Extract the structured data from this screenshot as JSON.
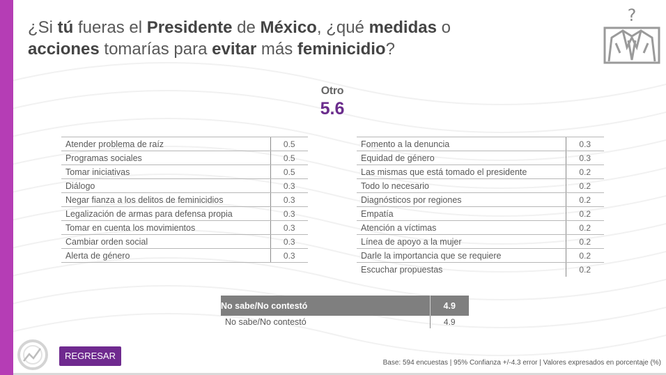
{
  "title": {
    "line1": [
      {
        "text": "¿Si ",
        "bold": false
      },
      {
        "text": "tú",
        "bold": true
      },
      {
        "text": " fueras el ",
        "bold": false
      },
      {
        "text": "Presidente",
        "bold": true
      },
      {
        "text": " de ",
        "bold": false
      },
      {
        "text": "México",
        "bold": true
      },
      {
        "text": ", ¿qué ",
        "bold": false
      },
      {
        "text": "medidas",
        "bold": true
      },
      {
        "text": " o",
        "bold": false
      }
    ],
    "line2": [
      {
        "text": "acciones",
        "bold": true
      },
      {
        "text": " tomarías para ",
        "bold": false
      },
      {
        "text": "evitar",
        "bold": true
      },
      {
        "text": " más ",
        "bold": false
      },
      {
        "text": "feminicidio",
        "bold": true
      },
      {
        "text": "?",
        "bold": false
      }
    ]
  },
  "logo": {
    "icon": "question-suit-icon",
    "glyph": "?"
  },
  "otro": {
    "label": "Otro",
    "value": "5.6"
  },
  "table_left": [
    {
      "label": "Atender problema de raíz",
      "value": "0.5"
    },
    {
      "label": "Programas sociales",
      "value": "0.5"
    },
    {
      "label": "Tomar iniciativas",
      "value": "0.5"
    },
    {
      "label": "Diálogo",
      "value": "0.3"
    },
    {
      "label": "Negar fianza a los delitos de feminicidios",
      "value": "0.3"
    },
    {
      "label": "Legalización de armas para defensa propia",
      "value": "0.3"
    },
    {
      "label": "Tomar en cuenta los movimientos",
      "value": "0.3"
    },
    {
      "label": "Cambiar orden social",
      "value": "0.3"
    },
    {
      "label": "Alerta de género",
      "value": "0.3"
    }
  ],
  "table_right": [
    {
      "label": "Fomento a la denuncia",
      "value": "0.3"
    },
    {
      "label": "Equidad de género",
      "value": "0.3"
    },
    {
      "label": "Las mismas que está tomado el presidente",
      "value": "0.2"
    },
    {
      "label": "Todo lo necesario",
      "value": "0.2"
    },
    {
      "label": "Diagnósticos por regiones",
      "value": "0.2"
    },
    {
      "label": "Empatía",
      "value": "0.2"
    },
    {
      "label": "Atención a víctimas",
      "value": "0.2"
    },
    {
      "label": "Línea de apoyo a la mujer",
      "value": "0.2"
    },
    {
      "label": "Darle la importancia que se requiere",
      "value": "0.2"
    },
    {
      "label": "Escuchar propuestas",
      "value": "0.2"
    }
  ],
  "no_sabe": {
    "header_label": "No sabe/No contestó",
    "header_value": "4.9",
    "row_label": "No sabe/No contestó",
    "row_value": "4.9"
  },
  "button": {
    "label": "REGRESAR"
  },
  "footer": "Base: 594 encuestas | 95% Confianza +/-4.3 error | Valores expresados en porcentaje (%)",
  "colors": {
    "accent_bar": "#b53db5",
    "button": "#6f2a8f",
    "value_highlight": "#6a2c8c",
    "header_gray": "#7f7f7f"
  }
}
